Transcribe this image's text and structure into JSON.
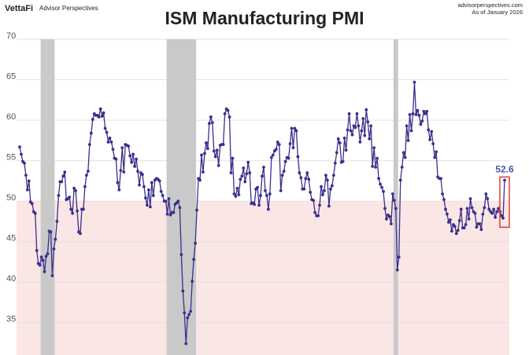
{
  "header": {
    "brand": "VettaFi",
    "brand_sub": "Advisor Perspectives",
    "site": "advisorperspectives.com",
    "as_of": "As of  January 2026"
  },
  "chart_data": {
    "type": "line",
    "title": "ISM Manufacturing PMI",
    "color": "#3a2f8c",
    "threshold": 50,
    "threshold_color": "#fbe6e6",
    "recession_color": "#c9c9c9",
    "recessions": [
      [
        14,
        22
      ],
      [
        95,
        113
      ],
      [
        241,
        243
      ]
    ],
    "ylim": [
      31,
      70
    ],
    "yticks": [
      35,
      40,
      45,
      50,
      55,
      60,
      65,
      70
    ],
    "grid": true,
    "values": [
      56.7,
      55.8,
      54.9,
      54.7,
      53.2,
      51.4,
      52.5,
      49.9,
      49.7,
      48.7,
      48.5,
      43.9,
      42.3,
      42.1,
      43.1,
      42.7,
      41.3,
      43.2,
      43.5,
      46.3,
      46.2,
      40.8,
      44.1,
      45.3,
      47.5,
      50.7,
      52.4,
      52.4,
      53.1,
      53.6,
      50.2,
      50.3,
      50.5,
      49.0,
      48.5,
      51.6,
      51.3,
      48.8,
      46.2,
      46.0,
      49.0,
      49.0,
      51.8,
      53.2,
      53.7,
      57.0,
      58.4,
      60.1,
      60.8,
      60.6,
      60.6,
      60.4,
      61.4,
      60.5,
      60.9,
      59.0,
      58.5,
      57.3,
      57.8,
      57.3,
      56.4,
      55.3,
      55.2,
      52.3,
      51.4,
      53.8,
      56.6,
      53.6,
      57.0,
      56.9,
      56.8,
      55.6,
      54.8,
      55.8,
      54.3,
      55.2,
      53.7,
      52.0,
      53.5,
      53.3,
      51.8,
      50.4,
      49.5,
      51.4,
      49.3,
      52.3,
      50.7,
      52.6,
      52.8,
      52.7,
      52.5,
      51.2,
      50.7,
      50.0,
      50.0,
      48.4,
      50.3,
      48.3,
      48.6,
      48.6,
      49.6,
      49.8,
      50.0,
      49.2,
      43.4,
      38.9,
      36.2,
      32.4,
      35.6,
      36.0,
      36.4,
      40.1,
      42.8,
      44.8,
      48.9,
      52.8,
      52.6,
      55.7,
      53.6,
      55.9,
      57.2,
      56.5,
      59.6,
      60.4,
      59.7,
      56.2,
      55.5,
      56.3,
      54.4,
      56.9,
      57.0,
      57.0,
      60.8,
      61.4,
      61.2,
      60.4,
      53.5,
      55.3,
      50.9,
      50.6,
      51.6,
      50.8,
      52.7,
      53.1,
      54.1,
      52.4,
      53.4,
      54.8,
      53.5,
      49.7,
      49.8,
      49.6,
      51.5,
      51.7,
      49.5,
      50.7,
      53.1,
      54.2,
      51.3,
      50.7,
      49.0,
      50.9,
      55.4,
      55.7,
      56.2,
      56.4,
      57.3,
      57.0,
      51.3,
      53.2,
      53.7,
      54.9,
      55.4,
      55.3,
      57.1,
      59.0,
      56.6,
      59.0,
      58.7,
      55.5,
      53.5,
      52.9,
      51.5,
      51.5,
      52.8,
      53.5,
      52.7,
      51.1,
      50.2,
      50.1,
      48.6,
      48.2,
      48.2,
      49.5,
      51.8,
      50.8,
      51.3,
      53.2,
      52.6,
      49.4,
      51.5,
      51.9,
      53.2,
      54.7,
      56.0,
      57.7,
      57.2,
      54.8,
      54.9,
      57.8,
      56.3,
      58.8,
      60.8,
      58.7,
      58.2,
      59.3,
      59.1,
      60.8,
      59.3,
      57.3,
      58.7,
      60.2,
      58.1,
      61.3,
      59.8,
      57.7,
      59.3,
      54.3,
      56.6,
      54.2,
      55.3,
      52.8,
      52.1,
      51.7,
      51.2,
      49.1,
      47.8,
      48.3,
      48.1,
      47.2,
      50.9,
      50.1,
      49.1,
      41.5,
      43.1,
      52.6,
      54.2,
      56.0,
      55.4,
      59.3,
      57.5,
      60.7,
      58.7,
      60.8,
      64.7,
      60.7,
      61.2,
      60.6,
      59.5,
      59.9,
      61.1,
      60.8,
      61.1,
      58.8,
      57.6,
      58.6,
      57.1,
      55.4,
      56.1,
      53.0,
      52.8,
      52.8,
      50.9,
      50.2,
      49.0,
      48.4,
      47.4,
      47.7,
      46.3,
      47.1,
      46.9,
      46.0,
      46.4,
      47.6,
      49.0,
      46.7,
      46.7,
      47.1,
      49.1,
      47.8,
      50.3,
      49.2,
      48.7,
      48.5,
      46.8,
      47.2,
      47.2,
      46.5,
      48.4,
      49.2,
      50.9,
      50.3,
      49.0,
      48.7,
      48.5,
      49.0,
      48.0,
      48.7,
      49.1,
      48.7,
      48.2,
      47.9,
      52.6
    ]
  }
}
